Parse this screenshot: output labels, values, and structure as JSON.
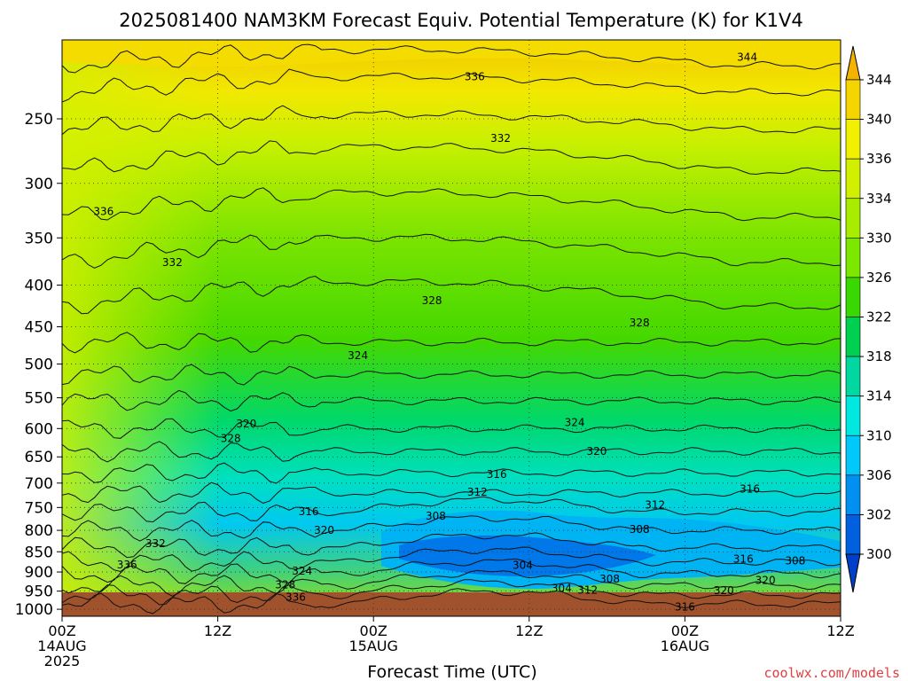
{
  "chart_data": {
    "type": "heatmap",
    "title": "2025081400 NAM3KM Forecast Equiv. Potential Temperature (K) for K1V4",
    "xlabel": "Forecast Time (UTC)",
    "ylabel": "",
    "credit": "coolwx.com/models",
    "x_ticks": [
      {
        "hour": 0,
        "lines": [
          "00Z",
          "14AUG",
          "2025"
        ]
      },
      {
        "hour": 12,
        "lines": [
          "12Z"
        ]
      },
      {
        "hour": 24,
        "lines": [
          "00Z",
          "15AUG"
        ]
      },
      {
        "hour": 36,
        "lines": [
          "12Z"
        ]
      },
      {
        "hour": 48,
        "lines": [
          "00Z",
          "16AUG"
        ]
      },
      {
        "hour": 60,
        "lines": [
          "12Z"
        ]
      }
    ],
    "xlim": [
      0,
      60
    ],
    "y_ticks": [
      250,
      300,
      350,
      400,
      450,
      500,
      550,
      600,
      650,
      700,
      750,
      800,
      850,
      900,
      950,
      1000
    ],
    "ylim": [
      200,
      1020
    ],
    "y_scale": "log",
    "grid": true,
    "colorbar": {
      "labels": [
        344,
        340,
        336,
        334,
        330,
        326,
        322,
        318,
        314,
        310,
        306,
        302,
        300
      ],
      "colors": [
        "#f3b300",
        "#f5d500",
        "#f0f000",
        "#d0f000",
        "#a8ec00",
        "#7ce800",
        "#38d800",
        "#00d050",
        "#00d8a0",
        "#00e8e0",
        "#00c8f8",
        "#0090f0",
        "#0060e0",
        "#0040c8"
      ]
    },
    "contour_labels": [
      {
        "text": "344",
        "hour": 52.8,
        "p": 210
      },
      {
        "text": "336",
        "hour": 31.8,
        "p": 222
      },
      {
        "text": "332",
        "hour": 33.8,
        "p": 264
      },
      {
        "text": "336",
        "hour": 3.2,
        "p": 325
      },
      {
        "text": "332",
        "hour": 8.5,
        "p": 375
      },
      {
        "text": "328",
        "hour": 28.5,
        "p": 418
      },
      {
        "text": "328",
        "hour": 44.5,
        "p": 445
      },
      {
        "text": "324",
        "hour": 22.8,
        "p": 488
      },
      {
        "text": "324",
        "hour": 39.5,
        "p": 590
      },
      {
        "text": "328",
        "hour": 13.0,
        "p": 617
      },
      {
        "text": "320",
        "hour": 14.2,
        "p": 592
      },
      {
        "text": "320",
        "hour": 41.2,
        "p": 640
      },
      {
        "text": "316",
        "hour": 33.5,
        "p": 683
      },
      {
        "text": "312",
        "hour": 32.0,
        "p": 718
      },
      {
        "text": "316",
        "hour": 53.0,
        "p": 712
      },
      {
        "text": "312",
        "hour": 45.7,
        "p": 745
      },
      {
        "text": "316",
        "hour": 19.0,
        "p": 759
      },
      {
        "text": "308",
        "hour": 28.8,
        "p": 768
      },
      {
        "text": "308",
        "hour": 44.5,
        "p": 798
      },
      {
        "text": "320",
        "hour": 20.2,
        "p": 800
      },
      {
        "text": "332",
        "hour": 7.2,
        "p": 830
      },
      {
        "text": "336",
        "hour": 5.0,
        "p": 882
      },
      {
        "text": "304",
        "hour": 35.5,
        "p": 883
      },
      {
        "text": "316",
        "hour": 52.5,
        "p": 868
      },
      {
        "text": "308",
        "hour": 56.5,
        "p": 872
      },
      {
        "text": "324",
        "hour": 18.5,
        "p": 898
      },
      {
        "text": "308",
        "hour": 42.2,
        "p": 918
      },
      {
        "text": "328",
        "hour": 17.2,
        "p": 933
      },
      {
        "text": "304",
        "hour": 38.5,
        "p": 943
      },
      {
        "text": "312",
        "hour": 40.5,
        "p": 947
      },
      {
        "text": "320",
        "hour": 51.0,
        "p": 948
      },
      {
        "text": "320",
        "hour": 54.2,
        "p": 922
      },
      {
        "text": "336",
        "hour": 18.0,
        "p": 967
      },
      {
        "text": "316",
        "hour": 48.0,
        "p": 993
      }
    ]
  }
}
